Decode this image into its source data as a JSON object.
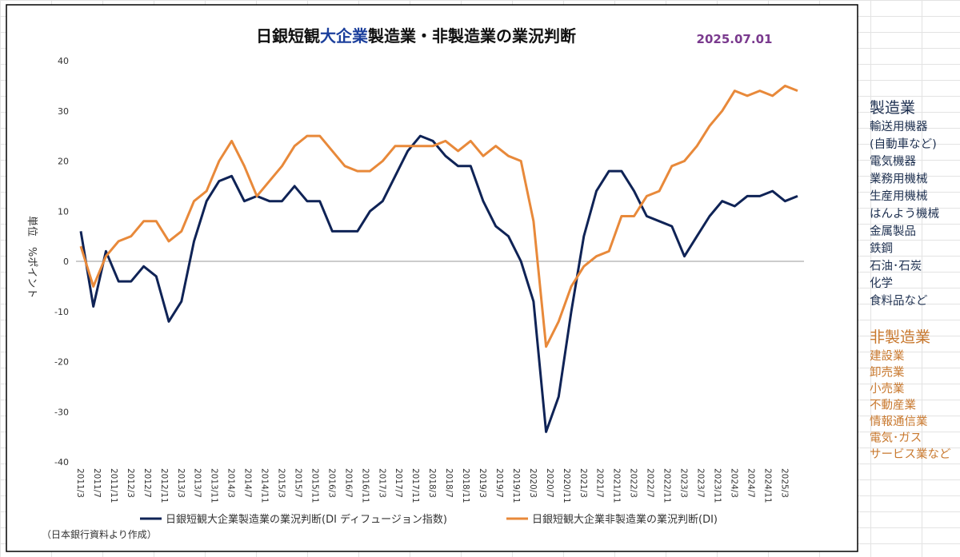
{
  "chart_data": {
    "type": "line",
    "title_parts": [
      "日銀短観",
      "大企業",
      "製造業・非製造業の業況判断"
    ],
    "date": "2025.07.01",
    "y_label": "単位　%ポイント",
    "source_note": "（日本銀行資料より作成）",
    "x": [
      "2011/3",
      "2011/6",
      "2011/9",
      "2011/12",
      "2012/3",
      "2012/6",
      "2012/9",
      "2012/12",
      "2013/3",
      "2013/6",
      "2013/9",
      "2013/12",
      "2014/3",
      "2014/6",
      "2014/9",
      "2014/12",
      "2015/3",
      "2015/6",
      "2015/9",
      "2015/12",
      "2016/3",
      "2016/6",
      "2016/9",
      "2016/12",
      "2017/3",
      "2017/6",
      "2017/9",
      "2017/12",
      "2018/3",
      "2018/6",
      "2018/9",
      "2018/12",
      "2019/3",
      "2019/6",
      "2019/9",
      "2019/12",
      "2020/3",
      "2020/6",
      "2020/9",
      "2020/12",
      "2021/3",
      "2021/6",
      "2021/9",
      "2021/12",
      "2022/3",
      "2022/6",
      "2022/9",
      "2022/12",
      "2023/3",
      "2023/6",
      "2023/9",
      "2023/12",
      "2024/3",
      "2024/6",
      "2024/9",
      "2024/12",
      "2025/3",
      "2025/6"
    ],
    "series": [
      {
        "name": "日銀短観大企業製造業の業況判断(DI ディフュージョン指数)",
        "color": "#0f2356",
        "values": [
          6,
          -9,
          2,
          -4,
          -4,
          -1,
          -3,
          -12,
          -8,
          4,
          12,
          16,
          17,
          12,
          13,
          12,
          12,
          15,
          12,
          12,
          6,
          6,
          6,
          10,
          12,
          17,
          22,
          25,
          24,
          21,
          19,
          19,
          12,
          7,
          5,
          0,
          -8,
          -34,
          -27,
          -10,
          5,
          14,
          18,
          18,
          14,
          9,
          8,
          7,
          1,
          5,
          9,
          12,
          11,
          13,
          13,
          14,
          12,
          13
        ]
      },
      {
        "name": "日銀短観大企業非製造業の業況判断(DI)",
        "color": "#e8893a",
        "values": [
          3,
          -5,
          1,
          4,
          5,
          8,
          8,
          4,
          6,
          12,
          14,
          20,
          24,
          19,
          13,
          16,
          19,
          23,
          25,
          25,
          22,
          19,
          18,
          18,
          20,
          23,
          23,
          23,
          23,
          24,
          22,
          24,
          21,
          23,
          21,
          20,
          8,
          -17,
          -12,
          -5,
          -1,
          1,
          2,
          9,
          9,
          13,
          14,
          19,
          20,
          23,
          27,
          30,
          34,
          33,
          34,
          33,
          35,
          34
        ]
      }
    ],
    "xlim": [
      "2011/3",
      "2025/6"
    ],
    "xticks": [
      "2011/3",
      "2011/7",
      "2011/11",
      "2012/3",
      "2012/7",
      "2012/11",
      "2013/3",
      "2013/7",
      "2013/11",
      "2014/3",
      "2014/7",
      "2014/11",
      "2015/3",
      "2015/7",
      "2015/11",
      "2016/3",
      "2016/7",
      "2016/11",
      "2017/3",
      "2017/7",
      "2017/11",
      "2018/3",
      "2018/7",
      "2018/11",
      "2019/3",
      "2019/7",
      "2019/11",
      "2020/3",
      "2020/7",
      "2020/11",
      "2021/3",
      "2021/7",
      "2021/11",
      "2022/3",
      "2022/7",
      "2022/11",
      "2023/3",
      "2023/7",
      "2023/11",
      "2024/3",
      "2024/7",
      "2024/11",
      "2025/3"
    ],
    "ylim": [
      -40,
      40
    ],
    "yticks": [
      -40,
      -30,
      -20,
      -10,
      0,
      10,
      20,
      30,
      40
    ],
    "grid": false,
    "legend": "bottom"
  },
  "side_panel": {
    "manufacturing": {
      "title": "製造業",
      "items": [
        "輸送用機器",
        "(自動車など)",
        "電気機器",
        "業務用機械",
        "生産用機械",
        "はんよう機械",
        "金属製品",
        "鉄鋼",
        "石油･石炭",
        "化学",
        "食料品など"
      ]
    },
    "non_manufacturing": {
      "title": "非製造業",
      "items": [
        "建設業",
        "卸売業",
        "小売業",
        "不動産業",
        "情報通信業",
        "電気･ガス",
        "サービス業など"
      ]
    }
  }
}
